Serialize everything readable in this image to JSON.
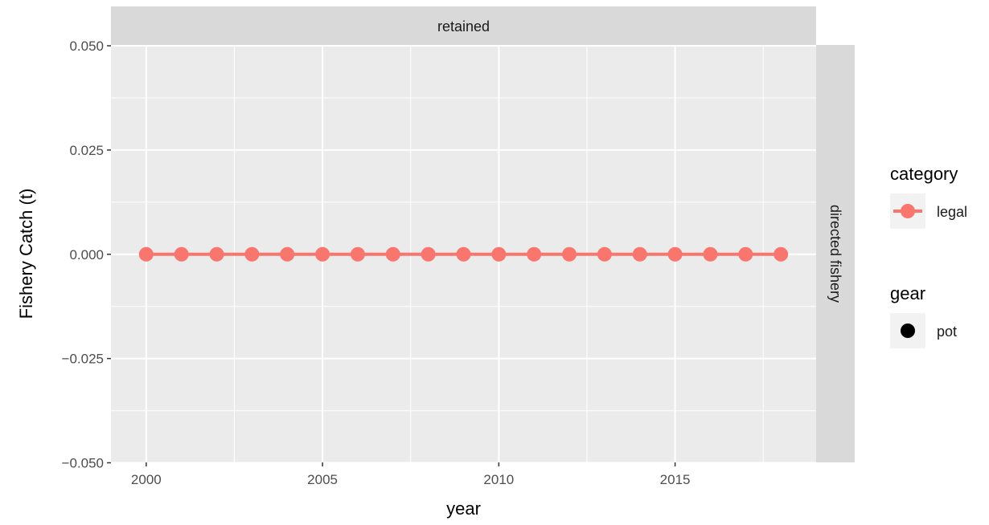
{
  "chart_data": {
    "type": "line",
    "facet_top": "retained",
    "facet_right": "directed fishery",
    "xlabel": "year",
    "ylabel": "Fishery Catch (t)",
    "xlim": [
      1999,
      2019
    ],
    "ylim": [
      -0.05,
      0.05
    ],
    "x_ticks": [
      2000,
      2005,
      2010,
      2015
    ],
    "y_ticks": [
      -0.05,
      -0.025,
      0,
      0.025,
      0.05
    ],
    "y_tick_labels": [
      "−0.050",
      "−0.025",
      "0.000",
      "0.025",
      "0.050"
    ],
    "grid": true,
    "legend_position": "right",
    "series": [
      {
        "name": "legal",
        "color": "#F8766D",
        "x": [
          2000,
          2001,
          2002,
          2003,
          2004,
          2005,
          2006,
          2007,
          2008,
          2009,
          2010,
          2011,
          2012,
          2013,
          2014,
          2015,
          2016,
          2017,
          2018
        ],
        "values": [
          0,
          0,
          0,
          0,
          0,
          0,
          0,
          0,
          0,
          0,
          0,
          0,
          0,
          0,
          0,
          0,
          0,
          0,
          0
        ]
      }
    ],
    "legends": [
      {
        "title": "category",
        "items": [
          {
            "label": "legal",
            "color": "#F8766D",
            "shape": "line-point"
          }
        ]
      },
      {
        "title": "gear",
        "items": [
          {
            "label": "pot",
            "color": "#000000",
            "shape": "point"
          }
        ]
      }
    ]
  }
}
